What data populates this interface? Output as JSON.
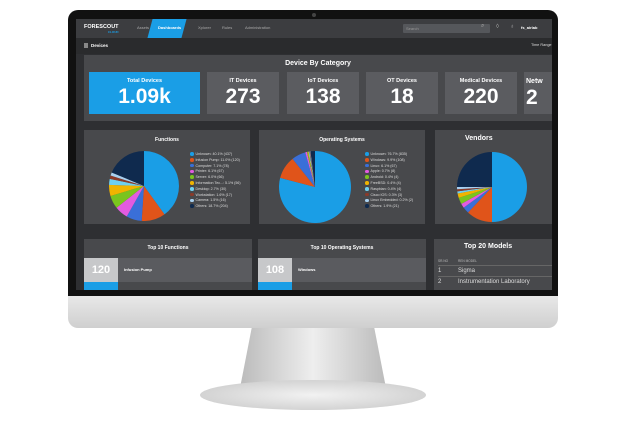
{
  "nav": {
    "logo": "FORESCOUT",
    "logo_sub": "CLOUD",
    "items": [
      "Assets",
      "Dashboards",
      "Xplorer",
      "Rules",
      "Administration"
    ],
    "active": "Dashboards",
    "search_placeholder": "Search",
    "user": "fs_airlab"
  },
  "page": {
    "title": "Devices",
    "time_range": "Time Range"
  },
  "category": {
    "title": "Device By Category",
    "cards": [
      {
        "label": "Total Devices",
        "value": "1.09k",
        "active": true
      },
      {
        "label": "IT Devices",
        "value": "273"
      },
      {
        "label": "IoT Devices",
        "value": "138"
      },
      {
        "label": "OT Devices",
        "value": "18"
      },
      {
        "label": "Medical Devices",
        "value": "220"
      },
      {
        "label": "Netw",
        "value": "2"
      }
    ]
  },
  "colors": [
    "#1a9ee6",
    "#e0541a",
    "#3a6fd8",
    "#e35be0",
    "#7ac41e",
    "#f0b400",
    "#6fd0f0",
    "#8a3a2a",
    "#a8d0f0",
    "#0f2a4e"
  ],
  "chart_data": [
    {
      "type": "pie",
      "title": "Functions",
      "labels": [
        "Unknown: 40.1% (437)",
        "Infusion Pump: 11.0% (120)",
        "Computer: 7.1% (78)",
        "Printer: 6.1% (67)",
        "Server: 6.0% (66)",
        "Information Tec...: 5.1% (56)",
        "Desktop: 2.7% (30)",
        "Workstation: 1.6% (17)",
        "Camera: 1.5% (16)",
        "Others: 18.7% (204)"
      ],
      "values": [
        437,
        120,
        78,
        67,
        66,
        56,
        30,
        17,
        16,
        204
      ]
    },
    {
      "type": "pie",
      "title": "Operating Systems",
      "labels": [
        "Unknown: 76.7% (835)",
        "Windows: 9.9% (108)",
        "Linux: 6.1% (67)",
        "Apple: 0.7% (8)",
        "Android: 0.4% (4)",
        "FreeBSD: 0.4% (4)",
        "Raspbian: 0.4% (4)",
        "Cisco IOS: 0.3% (3)",
        "Linux Embedded: 0.2% (2)",
        "Others: 1.9% (21)"
      ],
      "values": [
        835,
        108,
        67,
        8,
        4,
        4,
        4,
        3,
        2,
        21
      ]
    },
    {
      "type": "pie",
      "title": "Vendors",
      "values": [
        50,
        12,
        3,
        2,
        3,
        2,
        1,
        1,
        1,
        25
      ]
    }
  ],
  "top_functions": {
    "title": "Top 10 Functions",
    "rows": [
      {
        "count": "120",
        "label": "Infusion Pump"
      }
    ]
  },
  "top_os": {
    "title": "Top 10 Operating Systems",
    "rows": [
      {
        "count": "108",
        "label": "Windows"
      }
    ]
  },
  "top_models": {
    "title": "Top 20 Models",
    "headers": [
      "SR.NO",
      "REN MODEL"
    ],
    "rows": [
      [
        "1",
        "Sigma"
      ],
      [
        "2",
        "Instrumentation Laboratory"
      ]
    ]
  }
}
